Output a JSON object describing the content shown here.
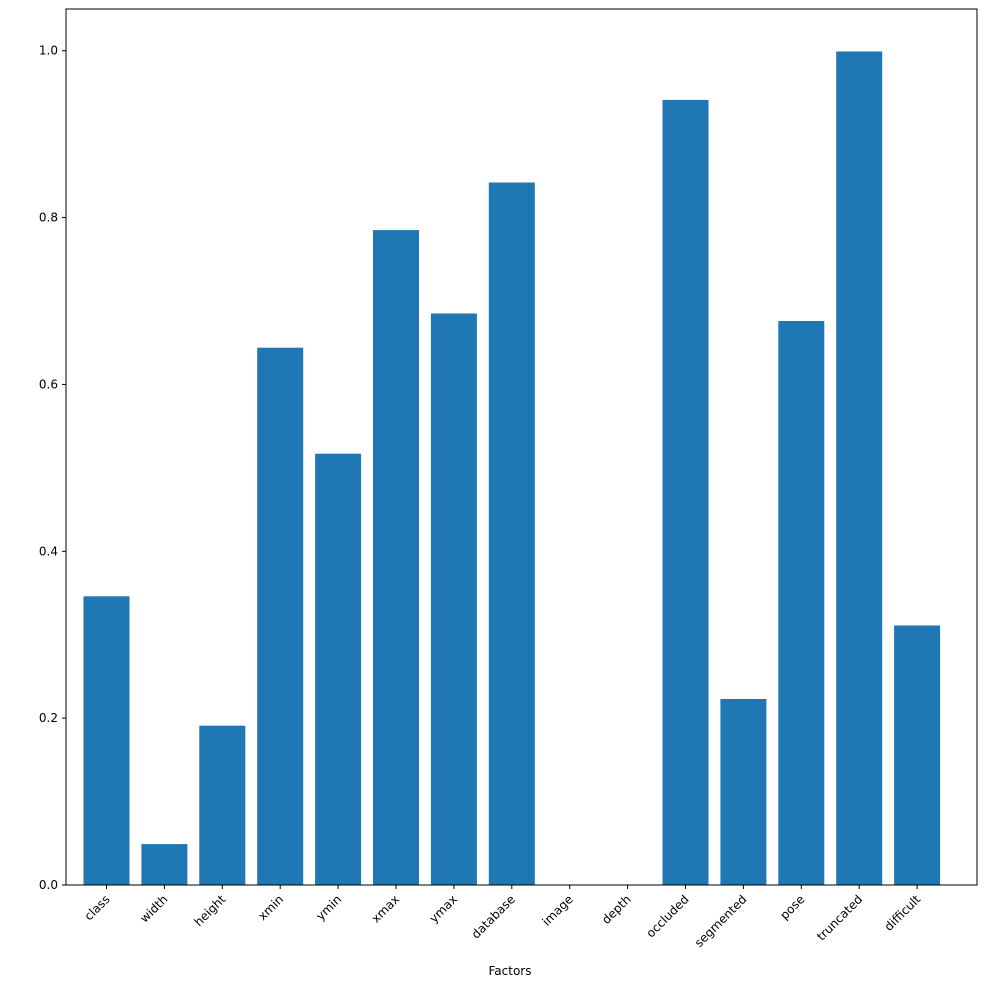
{
  "chart_data": {
    "type": "bar",
    "title": "",
    "xlabel": "Factors",
    "ylabel": "",
    "categories": [
      "class",
      "width",
      "height",
      "xmin",
      "ymin",
      "xmax",
      "ymax",
      "database",
      "image",
      "depth",
      "occluded",
      "segmented",
      "pose",
      "truncated",
      "difficult"
    ],
    "values": [
      0.346,
      0.049,
      0.191,
      0.644,
      0.517,
      0.785,
      0.685,
      0.842,
      0.0,
      0.0,
      0.941,
      0.223,
      0.676,
      0.999,
      0.311
    ],
    "ylim": [
      0,
      1.05
    ],
    "yticks": [
      0.0,
      0.2,
      0.4,
      0.6,
      0.8,
      1.0
    ],
    "ytick_labels": [
      "0.0",
      "0.2",
      "0.4",
      "0.6",
      "0.8",
      "1.0"
    ],
    "grid": false,
    "bar_color": "#1f77b4"
  }
}
